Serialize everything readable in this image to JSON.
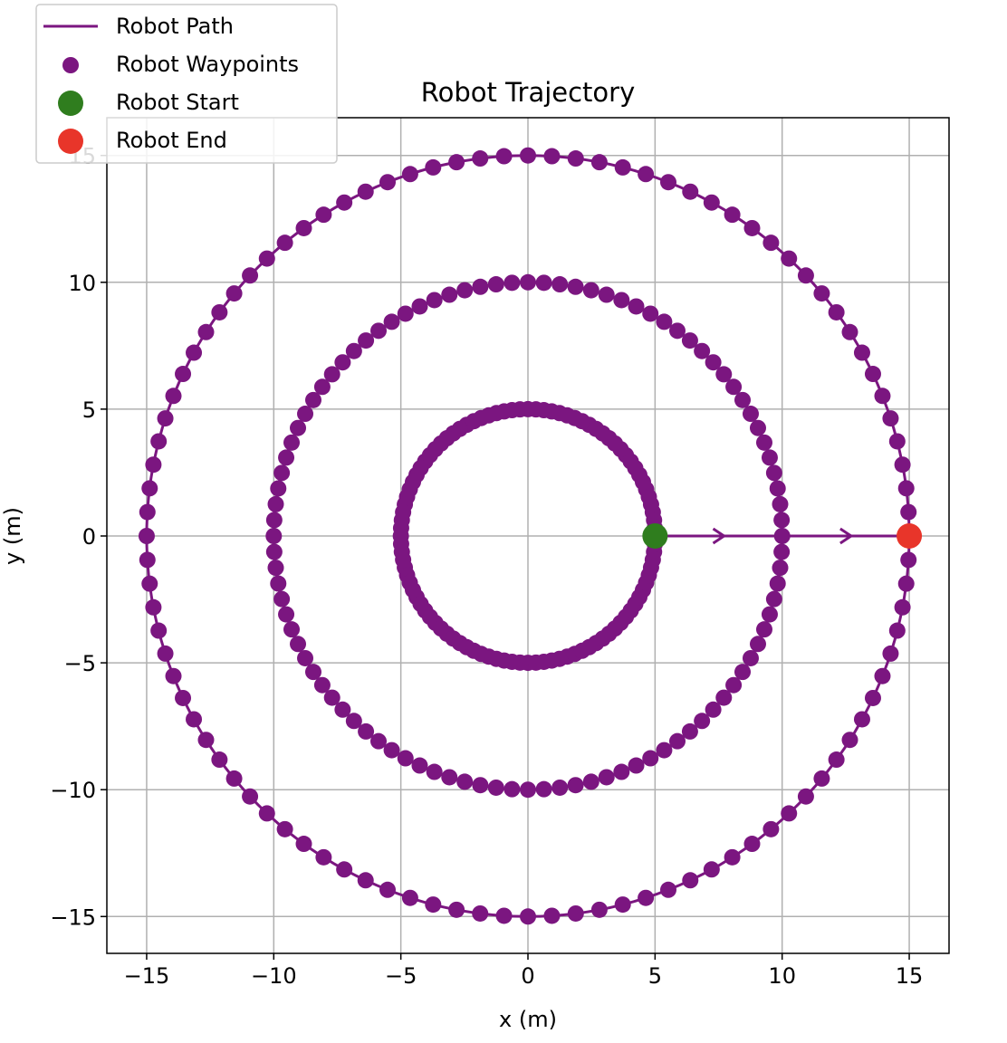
{
  "chart_data": {
    "type": "line",
    "title": "Robot Trajectory",
    "xlabel": "x (m)",
    "ylabel": "y (m)",
    "xlim": [
      -16.5,
      16.5
    ],
    "ylim": [
      -16.5,
      15.5
    ],
    "xticks": [
      -15,
      -10,
      -5,
      0,
      5,
      10,
      15
    ],
    "yticks": [
      -15,
      -10,
      -5,
      0,
      5,
      10,
      15
    ],
    "xtick_labels": [
      "−15",
      "−10",
      "−5",
      "0",
      "5",
      "10",
      "15"
    ],
    "ytick_labels": [
      "−15",
      "−10",
      "−5",
      "0",
      "5",
      "10",
      "15"
    ],
    "grid": true,
    "legend_position": "top-left (outside axes)",
    "colors": {
      "path": "#7b1680",
      "start": "#2f7d1e",
      "end": "#e8352a",
      "grid": "#b0b0b0"
    },
    "series": [
      {
        "name": "Robot Path",
        "kind": "line",
        "description_circles_radii": [
          5,
          10,
          15
        ],
        "connector_segments": [
          [
            [
              5,
              0
            ],
            [
              10,
              0
            ]
          ],
          [
            [
              10,
              0
            ],
            [
              15,
              0
            ]
          ]
        ]
      },
      {
        "name": "Robot Waypoints",
        "kind": "scatter",
        "circle_radii": [
          5,
          10,
          15
        ],
        "points_per_circle": 100
      },
      {
        "name": "Robot Start",
        "kind": "scatter",
        "x": [
          5
        ],
        "y": [
          0
        ]
      },
      {
        "name": "Robot End",
        "kind": "scatter",
        "x": [
          15
        ],
        "y": [
          0
        ]
      }
    ]
  }
}
